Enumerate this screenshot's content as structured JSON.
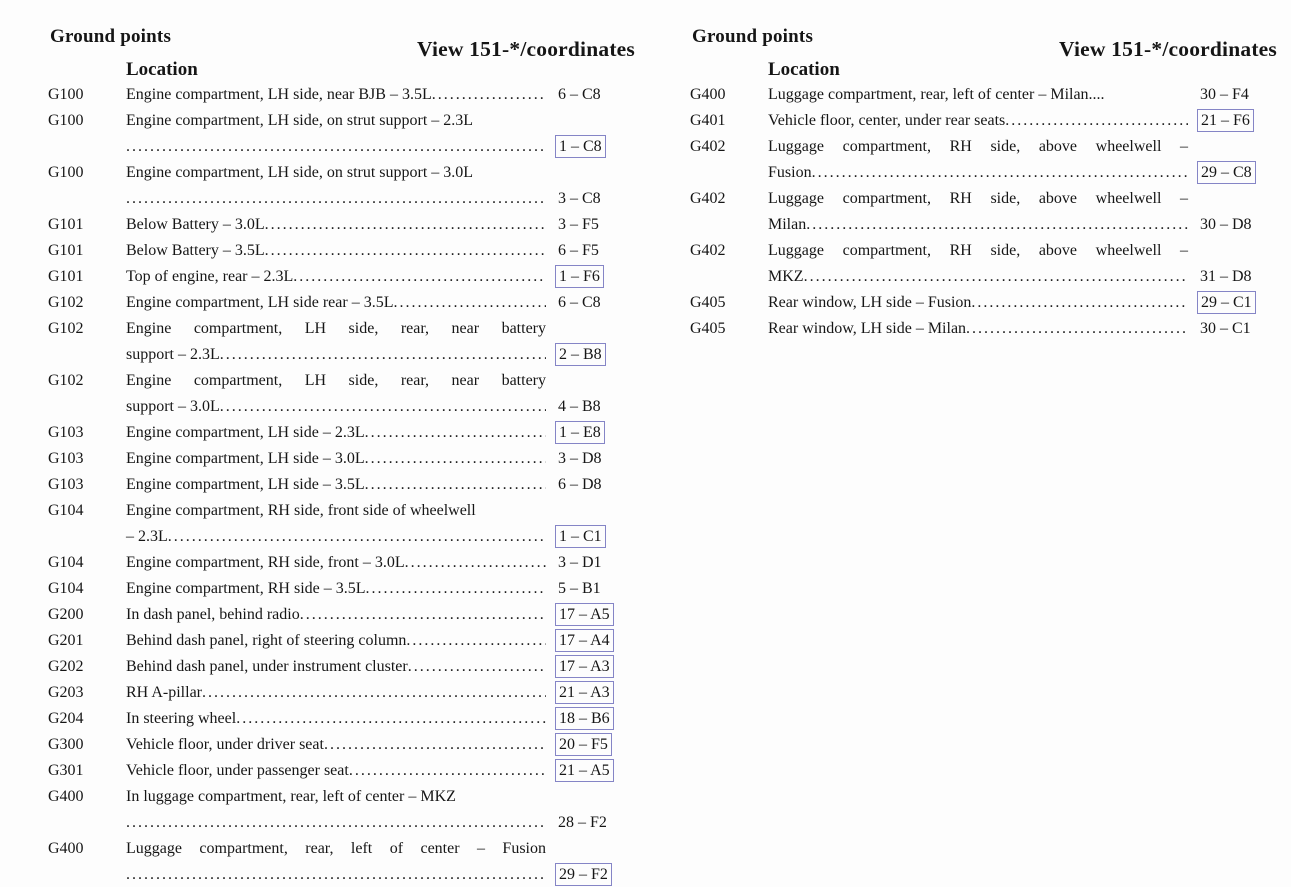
{
  "document": {
    "colors": {
      "link_box_border": "#8585c6",
      "text": "#161616",
      "background": "#fdfdfd"
    },
    "columns": [
      {
        "header": {
          "title": "Ground points",
          "view": "View 151-*/coordinates",
          "location_label": "Location"
        },
        "rows": [
          {
            "id": "G100",
            "coord": "6 – C8",
            "boxed": false,
            "lines": [
              {
                "text": "Engine compartment, LH side, near BJB – 3.5L",
                "leader": true
              }
            ]
          },
          {
            "id": "G100",
            "coord": "1 – C8",
            "boxed": true,
            "lines": [
              {
                "text": "Engine compartment, LH side, on strut support – 2.3L",
                "leader": false
              },
              {
                "text": "",
                "leader": true
              }
            ]
          },
          {
            "id": "G100",
            "coord": "3 – C8",
            "boxed": false,
            "lines": [
              {
                "text": "Engine compartment, LH side, on strut support – 3.0L",
                "leader": false
              },
              {
                "text": "",
                "leader": true
              }
            ]
          },
          {
            "id": "G101",
            "coord": "3 – F5",
            "boxed": false,
            "lines": [
              {
                "text": "Below Battery – 3.0L",
                "leader": true
              }
            ]
          },
          {
            "id": "G101",
            "coord": "6 – F5",
            "boxed": false,
            "lines": [
              {
                "text": "Below Battery – 3.5L",
                "leader": true
              }
            ]
          },
          {
            "id": "G101",
            "coord": "1 – F6",
            "boxed": true,
            "lines": [
              {
                "text": "Top of engine, rear – 2.3L",
                "leader": true
              }
            ]
          },
          {
            "id": "G102",
            "coord": "6 – C8",
            "boxed": false,
            "lines": [
              {
                "text": "Engine compartment, LH side rear – 3.5L",
                "leader": true
              }
            ]
          },
          {
            "id": "G102",
            "coord": "2 – B8",
            "boxed": true,
            "lines": [
              {
                "text": "Engine compartment, LH side, rear, near battery",
                "leader": false,
                "justify": true
              },
              {
                "text": "support – 2.3L",
                "leader": true
              }
            ]
          },
          {
            "id": "G102",
            "coord": "4 – B8",
            "boxed": false,
            "lines": [
              {
                "text": "Engine compartment, LH side, rear, near battery",
                "leader": false,
                "justify": true
              },
              {
                "text": "support – 3.0L",
                "leader": true
              }
            ]
          },
          {
            "id": "G103",
            "coord": "1 – E8",
            "boxed": true,
            "lines": [
              {
                "text": "Engine compartment, LH side – 2.3L",
                "leader": true
              }
            ]
          },
          {
            "id": "G103",
            "coord": "3 – D8",
            "boxed": false,
            "lines": [
              {
                "text": "Engine compartment, LH side – 3.0L",
                "leader": true
              }
            ]
          },
          {
            "id": "G103",
            "coord": "6 – D8",
            "boxed": false,
            "lines": [
              {
                "text": "Engine compartment, LH side – 3.5L",
                "leader": true
              }
            ]
          },
          {
            "id": "G104",
            "coord": "1 – C1",
            "boxed": true,
            "lines": [
              {
                "text": "Engine compartment, RH side, front side of wheelwell",
                "leader": false
              },
              {
                "text": "– 2.3L",
                "leader": true
              }
            ]
          },
          {
            "id": "G104",
            "coord": "3 – D1",
            "boxed": false,
            "lines": [
              {
                "text": "Engine compartment, RH side, front – 3.0L",
                "leader": true
              }
            ]
          },
          {
            "id": "G104",
            "coord": "5 – B1",
            "boxed": false,
            "lines": [
              {
                "text": "Engine compartment, RH side – 3.5L",
                "leader": true
              }
            ]
          },
          {
            "id": "G200",
            "coord": "17 – A5",
            "boxed": true,
            "lines": [
              {
                "text": "In dash panel, behind radio",
                "leader": true
              }
            ]
          },
          {
            "id": "G201",
            "coord": "17 – A4",
            "boxed": true,
            "lines": [
              {
                "text": "Behind dash panel, right of steering column",
                "leader": true
              }
            ]
          },
          {
            "id": "G202",
            "coord": "17 – A3",
            "boxed": true,
            "lines": [
              {
                "text": "Behind dash panel, under instrument cluster",
                "leader": true
              }
            ]
          },
          {
            "id": "G203",
            "coord": "21 – A3",
            "boxed": true,
            "lines": [
              {
                "text": "RH A-pillar",
                "leader": true
              }
            ]
          },
          {
            "id": "G204",
            "coord": "18 – B6",
            "boxed": true,
            "lines": [
              {
                "text": "In steering wheel",
                "leader": true
              }
            ]
          },
          {
            "id": "G300",
            "coord": "20 – F5",
            "boxed": true,
            "lines": [
              {
                "text": "Vehicle floor, under driver seat",
                "leader": true
              }
            ]
          },
          {
            "id": "G301",
            "coord": "21 – A5",
            "boxed": true,
            "lines": [
              {
                "text": "Vehicle floor, under passenger seat",
                "leader": true
              }
            ]
          },
          {
            "id": "G400",
            "coord": "28 – F2",
            "boxed": false,
            "lines": [
              {
                "text": "In luggage compartment, rear, left of center – MKZ",
                "leader": false
              },
              {
                "text": "",
                "leader": true
              }
            ]
          },
          {
            "id": "G400",
            "coord": "29 – F2",
            "boxed": true,
            "lines": [
              {
                "text": "Luggage compartment, rear, left of center – Fusion",
                "leader": false,
                "justify": true
              },
              {
                "text": "",
                "leader": true
              }
            ]
          }
        ]
      },
      {
        "header": {
          "title": "Ground points",
          "view": "View 151-*/coordinates",
          "location_label": "Location"
        },
        "rows": [
          {
            "id": "G400",
            "coord": "30 – F4",
            "boxed": false,
            "lines": [
              {
                "text": "Luggage compartment, rear, left of center – Milan....",
                "leader": false
              }
            ]
          },
          {
            "id": "G401",
            "coord": "21 – F6",
            "boxed": true,
            "lines": [
              {
                "text": "Vehicle floor, center, under rear seats",
                "leader": true
              }
            ]
          },
          {
            "id": "G402",
            "coord": "29 – C8",
            "boxed": true,
            "lines": [
              {
                "text": "Luggage compartment, RH side, above wheelwell –",
                "leader": false,
                "justify": true
              },
              {
                "text": "Fusion",
                "leader": true
              }
            ]
          },
          {
            "id": "G402",
            "coord": "30 – D8",
            "boxed": false,
            "lines": [
              {
                "text": "Luggage compartment, RH side, above wheelwell –",
                "leader": false,
                "justify": true
              },
              {
                "text": "Milan",
                "leader": true
              }
            ]
          },
          {
            "id": "G402",
            "coord": "31 – D8",
            "boxed": false,
            "lines": [
              {
                "text": "Luggage compartment, RH side, above wheelwell –",
                "leader": false,
                "justify": true
              },
              {
                "text": "MKZ",
                "leader": true
              }
            ]
          },
          {
            "id": "G405",
            "coord": "29 – C1",
            "boxed": true,
            "lines": [
              {
                "text": "Rear window, LH side – Fusion",
                "leader": true
              }
            ]
          },
          {
            "id": "G405",
            "coord": "30 – C1",
            "boxed": false,
            "lines": [
              {
                "text": "Rear window, LH side – Milan",
                "leader": true
              }
            ]
          }
        ]
      }
    ]
  }
}
